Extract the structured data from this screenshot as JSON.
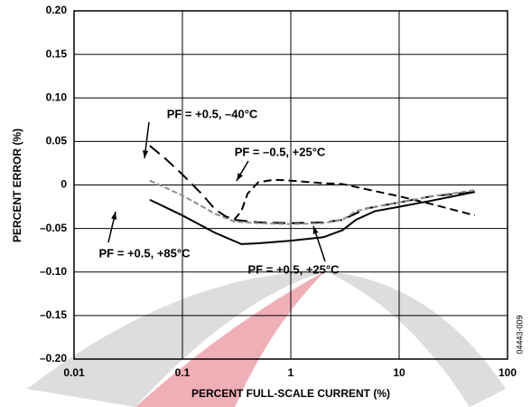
{
  "chart_data": {
    "type": "line",
    "x_label": "PERCENT FULL-SCALE CURRENT (%)",
    "y_label": "PERCENT ERROR (%)",
    "figure_id": "04443-009",
    "log_x": true,
    "grid": true,
    "xlim": [
      0.01,
      100
    ],
    "xticks": [
      0.01,
      0.1,
      1,
      10,
      100
    ],
    "ylim": [
      -0.2,
      0.2
    ],
    "yticks": [
      {
        "value": -0.2,
        "label": "–0.20"
      },
      {
        "value": -0.15,
        "label": "–0.15"
      },
      {
        "value": -0.1,
        "label": "–0.10"
      },
      {
        "value": -0.05,
        "label": "–0.05"
      },
      0,
      {
        "value": 0.05,
        "label": "0.05"
      },
      {
        "value": 0.1,
        "label": "0.10"
      },
      {
        "value": 0.15,
        "label": "0.15"
      },
      {
        "value": 0.2,
        "label": "0.20"
      }
    ],
    "series": [
      {
        "name": "PF = +0.5, –40°C",
        "color": "#000000",
        "dash": "14 7",
        "x": [
          0.05,
          0.07,
          0.1,
          0.15,
          0.2,
          0.25,
          0.3,
          0.5,
          1,
          2,
          3,
          5,
          10,
          20,
          50
        ],
        "values": [
          0.045,
          0.03,
          0.012,
          -0.01,
          -0.028,
          -0.036,
          -0.04,
          -0.043,
          -0.044,
          -0.043,
          -0.04,
          -0.027,
          -0.02,
          -0.013,
          -0.008
        ]
      },
      {
        "name": "PF = –0.5, +25°C",
        "color": "#000000",
        "dash": "9 5",
        "x": [
          0.3,
          0.35,
          0.4,
          0.5,
          0.7,
          1,
          2,
          3,
          5,
          10,
          20,
          50
        ],
        "values": [
          -0.04,
          -0.03,
          -0.01,
          0.003,
          0.006,
          0.005,
          0.002,
          0.001,
          -0.005,
          -0.013,
          -0.022,
          -0.035
        ]
      },
      {
        "name": "PF = +0.5, +25°C",
        "color": "#8c8c8c",
        "dash": "6 3",
        "x": [
          0.05,
          0.1,
          0.2,
          0.3,
          0.5,
          1,
          2,
          3,
          4,
          6,
          10,
          20,
          50
        ],
        "values": [
          0.005,
          -0.012,
          -0.033,
          -0.042,
          -0.044,
          -0.045,
          -0.044,
          -0.04,
          -0.03,
          -0.025,
          -0.02,
          -0.013,
          -0.006
        ]
      },
      {
        "name": "PF = +0.5, +85°C",
        "color": "#000000",
        "dash": "none",
        "x": [
          0.05,
          0.1,
          0.2,
          0.35,
          0.5,
          1,
          2,
          3,
          4,
          6,
          10,
          20,
          50
        ],
        "values": [
          -0.017,
          -0.035,
          -0.055,
          -0.068,
          -0.067,
          -0.064,
          -0.06,
          -0.052,
          -0.04,
          -0.03,
          -0.025,
          -0.018,
          -0.008
        ]
      }
    ]
  }
}
